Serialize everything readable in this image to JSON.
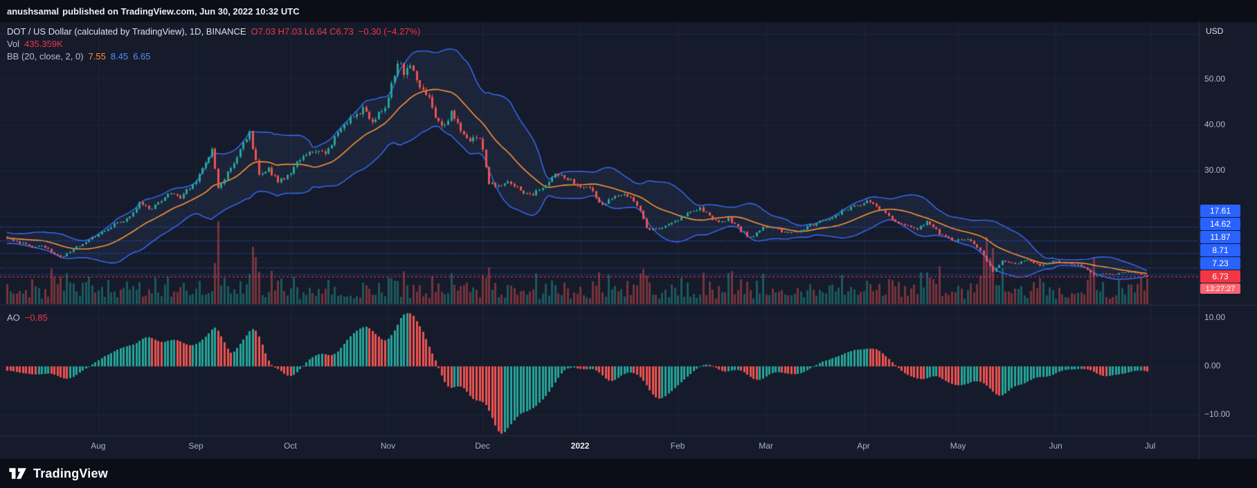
{
  "publisher_bar": {
    "username": "anushsamal",
    "text": "published on TradingView.com, Jun 30, 2022 10:32 UTC"
  },
  "legend": {
    "symbol_title": "DOT / US Dollar (calculated by TradingView), 1D, BINANCE",
    "ohlc": "O7.03 H7.03 L6.64 C6.73",
    "change": "−0.30 (−4.27%)",
    "volume_label": "Vol",
    "volume_value": "435.359K",
    "bb_label": "BB (20, close, 2, 0)",
    "bb_basis": "7.55",
    "bb_upper": "8.45",
    "bb_lower": "6.65",
    "ao_label": "AO",
    "ao_value": "−0.85"
  },
  "price_axis": {
    "currency": "USD",
    "ticks": [
      {
        "value": 50,
        "label": "50.00"
      },
      {
        "value": 40,
        "label": "40.00"
      },
      {
        "value": 30,
        "label": "30.00"
      }
    ],
    "level_badges": [
      {
        "value": 17.61,
        "label": "17.61"
      },
      {
        "value": 14.62,
        "label": "14.62"
      },
      {
        "value": 11.87,
        "label": "11.87"
      },
      {
        "value": 8.71,
        "label": "8.71"
      },
      {
        "value": 7.23,
        "label": "7.23"
      }
    ],
    "last_price": {
      "value": 6.73,
      "label": "6.73",
      "countdown": "13:27:27"
    }
  },
  "ao_axis": {
    "ticks": [
      {
        "value": 10,
        "label": "10.00"
      },
      {
        "value": 0,
        "label": "0.00"
      },
      {
        "value": -10,
        "label": "−10.00"
      }
    ]
  },
  "time_axis": {
    "labels": [
      {
        "text": "Aug",
        "date": "2021-08-01"
      },
      {
        "text": "Sep",
        "date": "2021-09-01"
      },
      {
        "text": "Oct",
        "date": "2021-10-01"
      },
      {
        "text": "Nov",
        "date": "2021-11-01"
      },
      {
        "text": "Dec",
        "date": "2021-12-01"
      },
      {
        "text": "2022",
        "date": "2022-01-01",
        "major": true
      },
      {
        "text": "Feb",
        "date": "2022-02-01"
      },
      {
        "text": "Mar",
        "date": "2022-03-01"
      },
      {
        "text": "Apr",
        "date": "2022-04-01"
      },
      {
        "text": "May",
        "date": "2022-05-01"
      },
      {
        "text": "Jun",
        "date": "2022-06-01"
      },
      {
        "text": "Jul",
        "date": "2022-07-01"
      }
    ]
  },
  "branding": {
    "name": "TradingView"
  },
  "colors": {
    "background": "#151b2b",
    "grid": "#1e2536",
    "border": "#2a3143",
    "candle_up": "#26a69a",
    "candle_down": "#ef5350",
    "vol_up": "rgba(38,166,154,0.45)",
    "vol_down": "rgba(239,83,80,0.45)",
    "bb_basis": "#ff9432",
    "bb_band": "#3b6dff",
    "bb_fill": "rgba(90,120,190,0.10)",
    "level_line": "#2962ff",
    "last_price": "#f23645",
    "badge_blue": "#2962ff",
    "countdown_bg": "#fb6470",
    "accent_red": "#f23645"
  },
  "chart_data": {
    "type": "candlestick",
    "title": "DOT / US Dollar (calculated by TradingView), 1D, BINANCE",
    "interval": "1D",
    "x_visible_range": [
      "2021-07-03",
      "2022-07-02"
    ],
    "y_axis": {
      "scale": "linear",
      "price_at_y50": 50,
      "grid_prices": [
        60,
        50,
        40,
        30,
        20,
        10
      ]
    },
    "last_candle": {
      "open": 7.03,
      "high": 7.03,
      "low": 6.64,
      "close": 6.73,
      "change": -0.3,
      "change_pct": -4.27
    },
    "last_volume": "435.359K",
    "indicators": {
      "bollinger": {
        "length": 20,
        "source": "close",
        "mult": 2,
        "offset": 0,
        "basis": 7.55,
        "upper": 8.45,
        "lower": 6.65
      },
      "awesome_oscillator": {
        "fast": 5,
        "slow": 34,
        "value": -0.85,
        "axis_range": [
          -14,
          12.5
        ]
      }
    },
    "level_lines": [
      17.61,
      14.62,
      11.87,
      8.71,
      7.23
    ],
    "close_anchors": [
      [
        "2021-05-30",
        17.5
      ],
      [
        "2021-06-08",
        19.0
      ],
      [
        "2021-06-15",
        16.0
      ],
      [
        "2021-06-22",
        13.8
      ],
      [
        "2021-06-26",
        15.5
      ],
      [
        "2021-06-30",
        15.6
      ],
      [
        "2021-07-03",
        15.2
      ],
      [
        "2021-07-07",
        14.2
      ],
      [
        "2021-07-11",
        13.0
      ],
      [
        "2021-07-14",
        13.6
      ],
      [
        "2021-07-20",
        10.9
      ],
      [
        "2021-07-25",
        13.2
      ],
      [
        "2021-07-31",
        15.6
      ],
      [
        "2021-08-06",
        18.2
      ],
      [
        "2021-08-11",
        19.8
      ],
      [
        "2021-08-14",
        22.8
      ],
      [
        "2021-08-18",
        21.5
      ],
      [
        "2021-08-23",
        25.2
      ],
      [
        "2021-08-27",
        24.2
      ],
      [
        "2021-08-31",
        26.8
      ],
      [
        "2021-09-03",
        30.5
      ],
      [
        "2021-09-06",
        34.8
      ],
      [
        "2021-09-08",
        26.5
      ],
      [
        "2021-09-12",
        30.5
      ],
      [
        "2021-09-15",
        34.5
      ],
      [
        "2021-09-18",
        38.0
      ],
      [
        "2021-09-21",
        29.5
      ],
      [
        "2021-09-24",
        30.5
      ],
      [
        "2021-09-27",
        27.5
      ],
      [
        "2021-09-30",
        28.8
      ],
      [
        "2021-10-04",
        32.5
      ],
      [
        "2021-10-08",
        34.5
      ],
      [
        "2021-10-12",
        33.5
      ],
      [
        "2021-10-16",
        38.5
      ],
      [
        "2021-10-20",
        41.5
      ],
      [
        "2021-10-24",
        43.5
      ],
      [
        "2021-10-27",
        40.5
      ],
      [
        "2021-10-31",
        44.5
      ],
      [
        "2021-11-02",
        48.5
      ],
      [
        "2021-11-04",
        54.0
      ],
      [
        "2021-11-06",
        51.5
      ],
      [
        "2021-11-08",
        53.0
      ],
      [
        "2021-11-11",
        47.5
      ],
      [
        "2021-11-14",
        46.5
      ],
      [
        "2021-11-16",
        42.0
      ],
      [
        "2021-11-18",
        39.5
      ],
      [
        "2021-11-21",
        42.5
      ],
      [
        "2021-11-24",
        39.0
      ],
      [
        "2021-11-26",
        36.5
      ],
      [
        "2021-11-30",
        37.5
      ],
      [
        "2021-12-03",
        27.5
      ],
      [
        "2021-12-06",
        26.5
      ],
      [
        "2021-12-09",
        28.0
      ],
      [
        "2021-12-13",
        25.5
      ],
      [
        "2021-12-17",
        25.0
      ],
      [
        "2021-12-21",
        26.5
      ],
      [
        "2021-12-24",
        29.2
      ],
      [
        "2021-12-27",
        28.5
      ],
      [
        "2021-12-31",
        26.8
      ],
      [
        "2022-01-04",
        26.0
      ],
      [
        "2022-01-08",
        22.5
      ],
      [
        "2022-01-12",
        24.8
      ],
      [
        "2022-01-16",
        24.5
      ],
      [
        "2022-01-20",
        21.5
      ],
      [
        "2022-01-22",
        17.5
      ],
      [
        "2022-01-24",
        17.0
      ],
      [
        "2022-01-28",
        18.0
      ],
      [
        "2022-01-31",
        18.8
      ],
      [
        "2022-02-04",
        20.5
      ],
      [
        "2022-02-08",
        21.8
      ],
      [
        "2022-02-10",
        20.5
      ],
      [
        "2022-02-14",
        18.5
      ],
      [
        "2022-02-17",
        19.5
      ],
      [
        "2022-02-21",
        16.8
      ],
      [
        "2022-02-24",
        15.2
      ],
      [
        "2022-02-28",
        17.5
      ],
      [
        "2022-03-04",
        17.2
      ],
      [
        "2022-03-08",
        16.2
      ],
      [
        "2022-03-12",
        17.0
      ],
      [
        "2022-03-16",
        18.2
      ],
      [
        "2022-03-20",
        19.2
      ],
      [
        "2022-03-24",
        20.5
      ],
      [
        "2022-03-28",
        22.2
      ],
      [
        "2022-03-31",
        22.2
      ],
      [
        "2022-04-02",
        23.2
      ],
      [
        "2022-04-05",
        22.2
      ],
      [
        "2022-04-08",
        20.5
      ],
      [
        "2022-04-11",
        18.5
      ],
      [
        "2022-04-14",
        17.8
      ],
      [
        "2022-04-18",
        17.2
      ],
      [
        "2022-04-21",
        18.8
      ],
      [
        "2022-04-25",
        16.2
      ],
      [
        "2022-04-30",
        14.6
      ],
      [
        "2022-05-04",
        15.2
      ],
      [
        "2022-05-08",
        12.5
      ],
      [
        "2022-05-10",
        10.2
      ],
      [
        "2022-05-12",
        7.9
      ],
      [
        "2022-05-15",
        10.2
      ],
      [
        "2022-05-19",
        9.4
      ],
      [
        "2022-05-23",
        10.4
      ],
      [
        "2022-05-27",
        9.2
      ],
      [
        "2022-05-31",
        10.2
      ],
      [
        "2022-06-03",
        9.8
      ],
      [
        "2022-06-07",
        9.4
      ],
      [
        "2022-06-10",
        8.8
      ],
      [
        "2022-06-13",
        6.9
      ],
      [
        "2022-06-16",
        7.4
      ],
      [
        "2022-06-20",
        7.3
      ],
      [
        "2022-06-24",
        7.9
      ],
      [
        "2022-06-26",
        7.5
      ],
      [
        "2022-06-29",
        7.03
      ],
      [
        "2022-06-30",
        6.73
      ]
    ]
  }
}
